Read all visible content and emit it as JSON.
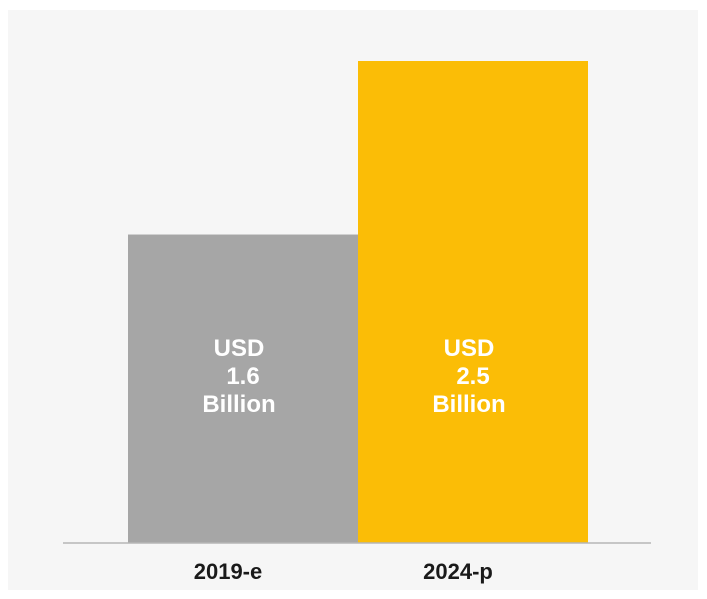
{
  "chart_data": {
    "type": "bar",
    "categories": [
      "2019-e",
      "2024-p"
    ],
    "values": [
      1.6,
      2.5
    ],
    "bar_labels": [
      [
        "USD",
        "1.6",
        "Billion"
      ],
      [
        "USD",
        "2.5",
        "Billion"
      ]
    ],
    "bar_colors": [
      "#a6a6a6",
      "#fbbd06"
    ],
    "label_color": "#ffffff",
    "axis_color": "#b5b5b5",
    "background": "#f6f6f6",
    "title": "",
    "xlabel": "",
    "ylabel": "",
    "ylim": [
      0,
      2.5
    ],
    "grid": false
  }
}
